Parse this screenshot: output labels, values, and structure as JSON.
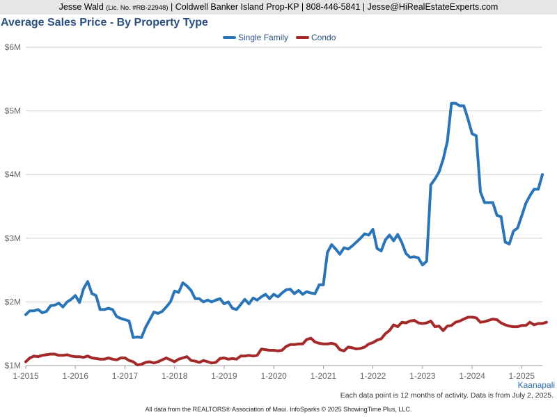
{
  "header": {
    "agent_name": "Jesse Wald",
    "license": "(Lic. No. #RB-22948)",
    "brokerage": "| Coldwell Banker Island Prop-KP | 808-446-5841 | Jesse@HiRealEstateExperts.com"
  },
  "region": "Kaanapali",
  "footer_note": "Each data point is 12 months of activity. Data is from July 2, 2025.",
  "source": "All data from the REALTORS® Association of Maui. InfoSparks © 2025 ShowingTime Plus, LLC.",
  "colors": {
    "single_family": "#2a74b8",
    "condo": "#a42a2a",
    "title": "#2a5082",
    "grid": "#cccccc"
  },
  "chart_data": {
    "type": "line",
    "title": "Average Sales Price - By Property Type",
    "xlabel": "",
    "ylabel": "",
    "y_ticks": [
      "$1M",
      "$2M",
      "$3M",
      "$4M",
      "$5M",
      "$6M"
    ],
    "ylim": [
      1000000,
      6000000
    ],
    "x_ticks": [
      "1-2015",
      "1-2016",
      "1-2017",
      "1-2018",
      "1-2019",
      "1-2020",
      "1-2021",
      "1-2022",
      "1-2023",
      "1-2024",
      "1-2025"
    ],
    "x_start": "2015-01",
    "x_end": "2025-06",
    "legend_position": "top-center",
    "grid": true,
    "series": [
      {
        "name": "Single Family",
        "color": "#2a74b8",
        "values": [
          1.8,
          1.86,
          1.86,
          1.88,
          1.83,
          1.85,
          1.94,
          1.95,
          1.98,
          1.92,
          2.0,
          2.04,
          2.1,
          1.99,
          2.21,
          2.32,
          2.13,
          2.1,
          1.88,
          1.88,
          1.9,
          1.88,
          1.77,
          1.74,
          1.72,
          1.7,
          1.44,
          1.45,
          1.44,
          1.6,
          1.72,
          1.84,
          1.82,
          1.85,
          1.92,
          2.0,
          2.17,
          2.15,
          2.3,
          2.25,
          2.18,
          2.05,
          2.05,
          2.0,
          2.03,
          2.0,
          2.03,
          2.05,
          1.97,
          2.0,
          1.9,
          1.88,
          1.96,
          2.04,
          1.97,
          2.06,
          2.03,
          2.08,
          2.12,
          2.05,
          2.12,
          2.08,
          2.14,
          2.19,
          2.2,
          2.13,
          2.18,
          2.12,
          2.16,
          2.14,
          2.13,
          2.27,
          2.27,
          2.78,
          2.9,
          2.83,
          2.75,
          2.85,
          2.83,
          2.88,
          2.94,
          3.0,
          3.07,
          3.05,
          3.14,
          2.84,
          2.8,
          2.97,
          3.05,
          2.96,
          3.06,
          2.93,
          2.76,
          2.7,
          2.71,
          2.69,
          2.58,
          2.64,
          3.84,
          3.93,
          4.04,
          4.24,
          4.52,
          5.12,
          5.12,
          5.08,
          5.08,
          4.87,
          4.64,
          4.61,
          3.73,
          3.56,
          3.56,
          3.56,
          3.36,
          3.34,
          2.94,
          2.91,
          3.11,
          3.16,
          3.35,
          3.55,
          3.67,
          3.77,
          3.77,
          4.0
        ]
      },
      {
        "name": "Condo",
        "color": "#a42a2a",
        "values": [
          1.06,
          1.12,
          1.15,
          1.14,
          1.16,
          1.17,
          1.18,
          1.18,
          1.16,
          1.16,
          1.17,
          1.15,
          1.14,
          1.14,
          1.13,
          1.15,
          1.12,
          1.11,
          1.1,
          1.1,
          1.12,
          1.1,
          1.09,
          1.12,
          1.12,
          1.08,
          1.06,
          1.01,
          1.02,
          1.05,
          1.06,
          1.04,
          1.06,
          1.09,
          1.12,
          1.09,
          1.06,
          1.1,
          1.12,
          1.14,
          1.08,
          1.07,
          1.05,
          1.08,
          1.06,
          1.04,
          1.05,
          1.11,
          1.12,
          1.1,
          1.11,
          1.1,
          1.15,
          1.15,
          1.16,
          1.15,
          1.16,
          1.26,
          1.25,
          1.24,
          1.24,
          1.23,
          1.24,
          1.3,
          1.33,
          1.33,
          1.34,
          1.34,
          1.41,
          1.43,
          1.37,
          1.35,
          1.34,
          1.34,
          1.35,
          1.33,
          1.25,
          1.23,
          1.29,
          1.28,
          1.26,
          1.27,
          1.29,
          1.34,
          1.36,
          1.4,
          1.42,
          1.5,
          1.55,
          1.64,
          1.61,
          1.68,
          1.67,
          1.7,
          1.71,
          1.67,
          1.66,
          1.67,
          1.7,
          1.61,
          1.62,
          1.55,
          1.62,
          1.63,
          1.68,
          1.7,
          1.73,
          1.76,
          1.76,
          1.75,
          1.68,
          1.69,
          1.71,
          1.73,
          1.72,
          1.67,
          1.64,
          1.62,
          1.61,
          1.61,
          1.63,
          1.63,
          1.68,
          1.64,
          1.66,
          1.66,
          1.68
        ]
      }
    ]
  }
}
